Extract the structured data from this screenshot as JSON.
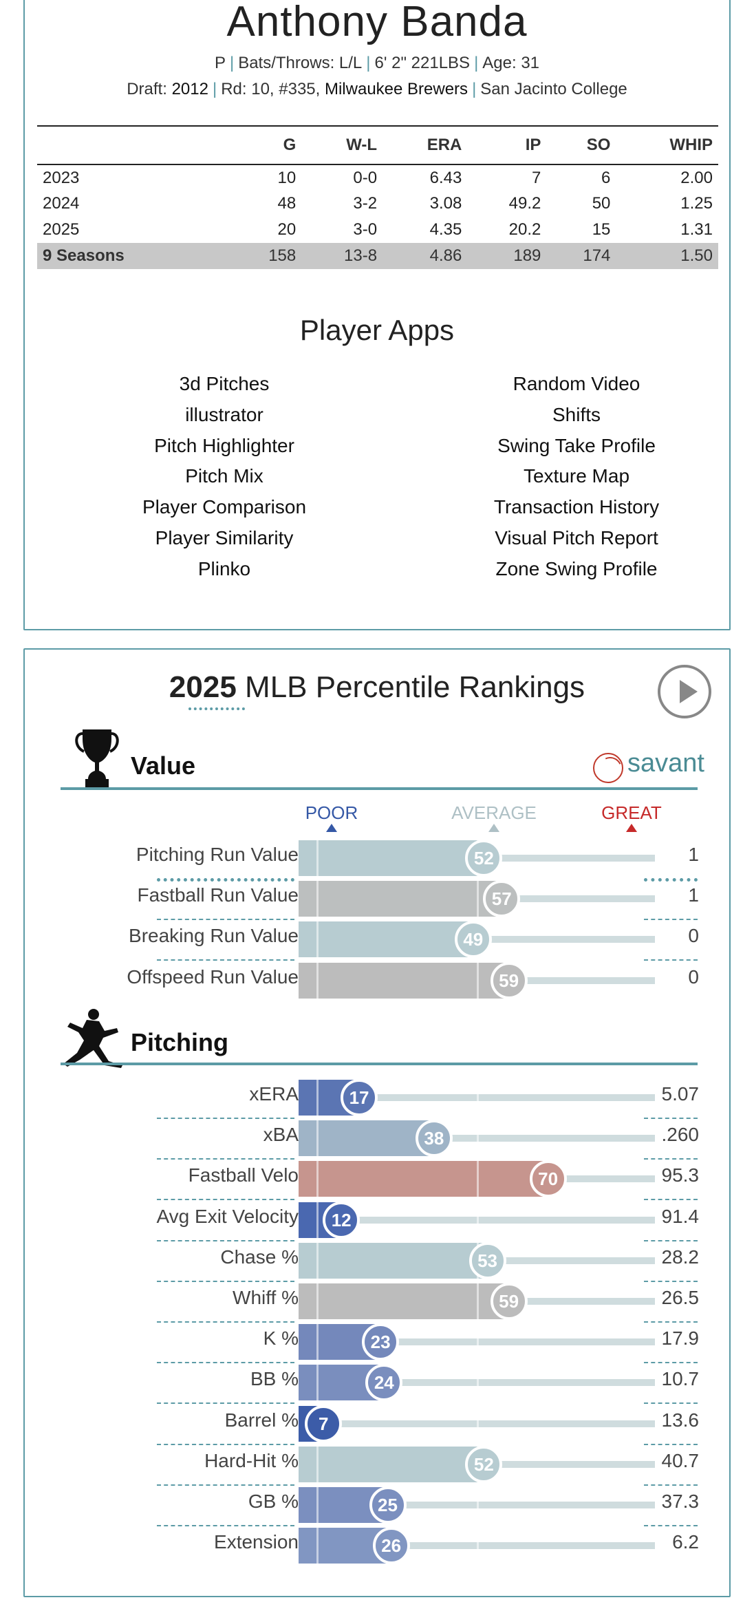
{
  "player": {
    "name": "Anthony Banda",
    "position": "P",
    "bats_throws": "Bats/Throws: L/L",
    "height_weight": "6' 2\" 221LBS",
    "age": "Age: 31",
    "draft_label": "Draft:",
    "draft_year": "2012",
    "draft_pick": "Rd: 10, #335,",
    "draft_team": "Milwaukee Brewers",
    "college": "San Jacinto College"
  },
  "stats": {
    "headers": [
      "",
      "G",
      "W-L",
      "ERA",
      "IP",
      "SO",
      "WHIP"
    ],
    "rows": [
      [
        "2023",
        "10",
        "0-0",
        "6.43",
        "7",
        "6",
        "2.00"
      ],
      [
        "2024",
        "48",
        "3-2",
        "3.08",
        "49.2",
        "50",
        "1.25"
      ],
      [
        "2025",
        "20",
        "3-0",
        "4.35",
        "20.2",
        "15",
        "1.31"
      ]
    ],
    "total": [
      "9 Seasons",
      "158",
      "13-8",
      "4.86",
      "189",
      "174",
      "1.50"
    ]
  },
  "apps": {
    "title": "Player Apps",
    "left": [
      "3d Pitches",
      "illustrator",
      "Pitch Highlighter",
      "Pitch Mix",
      "Player Comparison",
      "Player Similarity",
      "Plinko"
    ],
    "right": [
      "Random Video",
      "Shifts",
      "Swing Take Profile",
      "Texture Map",
      "Transaction History",
      "Visual Pitch Report",
      "Zone Swing Profile"
    ]
  },
  "percentile": {
    "year": "2025",
    "title_rest": "MLB Percentile Rankings",
    "brand": "savant",
    "scale": {
      "poor": "POOR",
      "average": "AVERAGE",
      "great": "GREAT"
    },
    "colors": {
      "poor": "#3558a6",
      "average": "#aec0c5",
      "great": "#c62a2a"
    },
    "sections": [
      {
        "title": "Value",
        "icon": "trophy-icon",
        "rows": [
          {
            "label": "Pitching Run Value",
            "pct": 52,
            "value": "1",
            "color": "#b7ccd1"
          },
          {
            "label": "Fastball Run Value",
            "pct": 57,
            "value": "1",
            "color": "#bcbfbf"
          },
          {
            "label": "Breaking Run Value",
            "pct": 49,
            "value": "0",
            "color": "#b7ccd1"
          },
          {
            "label": "Offspeed Run Value",
            "pct": 59,
            "value": "0",
            "color": "#bcbcbc"
          }
        ]
      },
      {
        "title": "Pitching",
        "icon": "pitcher-icon",
        "rows": [
          {
            "label": "xERA",
            "pct": 17,
            "value": "5.07",
            "color": "#5b75b3"
          },
          {
            "label": "xBA",
            "pct": 38,
            "value": ".260",
            "color": "#9fb4c7"
          },
          {
            "label": "Fastball Velo",
            "pct": 70,
            "value": "95.3",
            "color": "#c6958e"
          },
          {
            "label": "Avg Exit Velocity",
            "pct": 12,
            "value": "91.4",
            "color": "#4a68b0"
          },
          {
            "label": "Chase %",
            "pct": 53,
            "value": "28.2",
            "color": "#b7ccd1"
          },
          {
            "label": "Whiff %",
            "pct": 59,
            "value": "26.5",
            "color": "#bcbcbc"
          },
          {
            "label": "K %",
            "pct": 23,
            "value": "17.9",
            "color": "#7488bb"
          },
          {
            "label": "BB %",
            "pct": 24,
            "value": "10.7",
            "color": "#7a8ebe"
          },
          {
            "label": "Barrel %",
            "pct": 7,
            "value": "13.6",
            "color": "#3c5ca8"
          },
          {
            "label": "Hard-Hit %",
            "pct": 52,
            "value": "40.7",
            "color": "#b7ccd1"
          },
          {
            "label": "GB %",
            "pct": 25,
            "value": "37.3",
            "color": "#7b8fbf"
          },
          {
            "label": "Extension",
            "pct": 26,
            "value": "6.2",
            "color": "#8196c2"
          }
        ]
      }
    ]
  }
}
